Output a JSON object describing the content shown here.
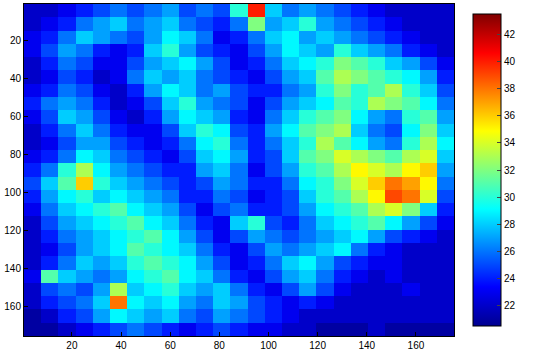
{
  "chart_data": {
    "type": "heatmap",
    "x": [
      4,
      11,
      18,
      25,
      32,
      39,
      46,
      53,
      60,
      67,
      74,
      81,
      88,
      95,
      102,
      109,
      116,
      123,
      130,
      137,
      144,
      151,
      158,
      165,
      172
    ],
    "y": [
      4,
      11,
      18,
      25,
      32,
      39,
      46,
      53,
      60,
      67,
      74,
      81,
      88,
      95,
      102,
      109,
      116,
      123,
      130,
      137,
      144,
      151,
      158,
      165,
      172
    ],
    "cells": [
      [
        22,
        22,
        23,
        24,
        25,
        26,
        25,
        26,
        27,
        25,
        26,
        25,
        30,
        40,
        28,
        26,
        27,
        26,
        25,
        24,
        23,
        22,
        22,
        22,
        22
      ],
      [
        22,
        23,
        24,
        26,
        27,
        28,
        26,
        27,
        28,
        26,
        25,
        24,
        26,
        32,
        27,
        28,
        30,
        27,
        26,
        25,
        24,
        23,
        22,
        22,
        22
      ],
      [
        23,
        24,
        26,
        28,
        27,
        26,
        25,
        27,
        29,
        28,
        26,
        23,
        24,
        26,
        28,
        29,
        27,
        28,
        27,
        26,
        25,
        24,
        23,
        22,
        22
      ],
      [
        23,
        25,
        27,
        26,
        24,
        23,
        24,
        28,
        30,
        27,
        25,
        24,
        23,
        25,
        27,
        29,
        28,
        27,
        30,
        28,
        27,
        26,
        24,
        23,
        22
      ],
      [
        22,
        24,
        26,
        25,
        23,
        23,
        25,
        27,
        28,
        29,
        27,
        25,
        23,
        24,
        26,
        28,
        29,
        30,
        32,
        31,
        30,
        28,
        27,
        25,
        23
      ],
      [
        22,
        23,
        25,
        24,
        22,
        23,
        26,
        28,
        27,
        28,
        26,
        25,
        24,
        23,
        25,
        27,
        28,
        31,
        33,
        32,
        31,
        30,
        29,
        27,
        24
      ],
      [
        23,
        24,
        26,
        25,
        23,
        22,
        24,
        27,
        29,
        28,
        26,
        27,
        25,
        24,
        24,
        26,
        27,
        30,
        32,
        30,
        31,
        33,
        30,
        28,
        25
      ],
      [
        24,
        26,
        27,
        26,
        24,
        22,
        23,
        25,
        28,
        30,
        27,
        26,
        25,
        23,
        25,
        27,
        28,
        29,
        31,
        30,
        33,
        32,
        31,
        29,
        26
      ],
      [
        23,
        25,
        28,
        27,
        25,
        23,
        22,
        24,
        27,
        29,
        28,
        27,
        24,
        23,
        26,
        28,
        30,
        31,
        32,
        29,
        27,
        26,
        30,
        31,
        27
      ],
      [
        22,
        24,
        26,
        28,
        26,
        24,
        23,
        23,
        25,
        28,
        30,
        29,
        25,
        24,
        27,
        29,
        31,
        32,
        33,
        28,
        26,
        25,
        29,
        32,
        28
      ],
      [
        22,
        23,
        25,
        27,
        27,
        25,
        24,
        23,
        24,
        26,
        29,
        30,
        26,
        24,
        26,
        28,
        30,
        33,
        31,
        29,
        27,
        26,
        30,
        33,
        29
      ],
      [
        23,
        24,
        26,
        29,
        28,
        26,
        25,
        24,
        23,
        25,
        28,
        29,
        27,
        24,
        25,
        28,
        31,
        32,
        34,
        33,
        32,
        31,
        33,
        34,
        28
      ],
      [
        24,
        26,
        30,
        33,
        29,
        27,
        26,
        25,
        24,
        24,
        27,
        28,
        26,
        23,
        25,
        27,
        30,
        31,
        33,
        35,
        34,
        33,
        35,
        36,
        27
      ],
      [
        25,
        28,
        31,
        36,
        30,
        28,
        27,
        26,
        25,
        24,
        25,
        27,
        26,
        24,
        24,
        26,
        29,
        30,
        32,
        34,
        36,
        38,
        37,
        35,
        26
      ],
      [
        24,
        27,
        29,
        30,
        28,
        29,
        28,
        27,
        26,
        24,
        24,
        26,
        25,
        23,
        24,
        25,
        28,
        30,
        31,
        33,
        35,
        39,
        38,
        34,
        25
      ],
      [
        23,
        26,
        28,
        29,
        30,
        31,
        29,
        28,
        27,
        25,
        23,
        25,
        26,
        24,
        24,
        25,
        27,
        29,
        30,
        31,
        33,
        34,
        32,
        28,
        24
      ],
      [
        22,
        25,
        27,
        28,
        29,
        30,
        31,
        29,
        28,
        26,
        24,
        23,
        28,
        30,
        25,
        24,
        26,
        28,
        29,
        30,
        31,
        29,
        27,
        25,
        23
      ],
      [
        22,
        24,
        26,
        27,
        28,
        29,
        30,
        31,
        29,
        27,
        25,
        23,
        25,
        27,
        26,
        25,
        26,
        27,
        28,
        29,
        27,
        25,
        24,
        23,
        22
      ],
      [
        22,
        23,
        25,
        27,
        28,
        29,
        31,
        30,
        29,
        28,
        26,
        24,
        23,
        25,
        27,
        26,
        27,
        28,
        29,
        26,
        24,
        23,
        22,
        22,
        22
      ],
      [
        22,
        24,
        26,
        28,
        27,
        28,
        30,
        31,
        30,
        29,
        27,
        25,
        23,
        24,
        26,
        28,
        29,
        27,
        25,
        24,
        23,
        23,
        22,
        22,
        22
      ],
      [
        23,
        31,
        28,
        27,
        26,
        27,
        29,
        30,
        31,
        29,
        28,
        26,
        24,
        23,
        25,
        27,
        28,
        26,
        24,
        23,
        22,
        23,
        22,
        22,
        22
      ],
      [
        22,
        25,
        26,
        25,
        27,
        33,
        28,
        29,
        30,
        28,
        27,
        28,
        26,
        24,
        23,
        25,
        27,
        25,
        23,
        22,
        22,
        22,
        23,
        22,
        22
      ],
      [
        22,
        24,
        25,
        26,
        28,
        38,
        29,
        28,
        29,
        27,
        26,
        28,
        27,
        25,
        24,
        23,
        24,
        23,
        22,
        22,
        22,
        22,
        22,
        22,
        22
      ],
      [
        21,
        22,
        24,
        25,
        27,
        29,
        28,
        27,
        28,
        26,
        25,
        27,
        26,
        25,
        24,
        23,
        22,
        22,
        22,
        22,
        22,
        22,
        22,
        22,
        22
      ],
      [
        21,
        21,
        22,
        23,
        24,
        25,
        26,
        25,
        24,
        23,
        24,
        25,
        24,
        23,
        23,
        22,
        22,
        21,
        21,
        21,
        22,
        21,
        21,
        21,
        21
      ]
    ],
    "xlim": [
      0.5,
      175.5
    ],
    "ylim": [
      175.5,
      0.5
    ],
    "xticks": [
      20,
      40,
      60,
      80,
      100,
      120,
      140,
      160
    ],
    "yticks": [
      20,
      40,
      60,
      80,
      100,
      120,
      140,
      160
    ],
    "zlim": [
      20.5,
      43.5
    ],
    "zticks": [
      22,
      24,
      26,
      28,
      30,
      32,
      34,
      36,
      38,
      40,
      42
    ]
  }
}
